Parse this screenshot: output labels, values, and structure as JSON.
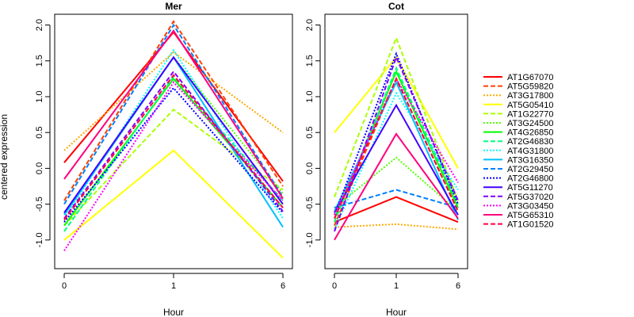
{
  "chart_data": {
    "type": "line",
    "ylabel": "centered expression",
    "xlabel": "Hour",
    "x": [
      "0",
      "1",
      "6"
    ],
    "yticks": [
      -1.0,
      -0.5,
      0.0,
      0.5,
      1.0,
      1.5,
      2.0
    ],
    "ytick_labels": [
      "-1.0",
      "-0.5",
      "0.0",
      "0.5",
      "1.0",
      "1.5",
      "2.0"
    ],
    "ylim": [
      -1.4,
      2.15
    ],
    "legend": {
      "placement": "right"
    },
    "legend_entries": [
      {
        "name": "AT1G67070",
        "color": "#ff0000",
        "dash": "solid"
      },
      {
        "name": "AT5G59820",
        "color": "#ff4000",
        "dash": "dashed"
      },
      {
        "name": "AT3G17800",
        "color": "#ffaa00",
        "dash": "dotted"
      },
      {
        "name": "AT5G05410",
        "color": "#ffff00",
        "dash": "solid"
      },
      {
        "name": "AT1G22770",
        "color": "#aaff00",
        "dash": "dashed"
      },
      {
        "name": "AT3G24500",
        "color": "#55ff00",
        "dash": "dotted"
      },
      {
        "name": "AT4G26850",
        "color": "#00ff00",
        "dash": "solid"
      },
      {
        "name": "AT2G46830",
        "color": "#00ff80",
        "dash": "dashed"
      },
      {
        "name": "AT4G31800",
        "color": "#00ffff",
        "dash": "dotted"
      },
      {
        "name": "AT3G16350",
        "color": "#00bfff",
        "dash": "solid"
      },
      {
        "name": "AT2G29450",
        "color": "#0080ff",
        "dash": "dashed"
      },
      {
        "name": "AT2G46800",
        "color": "#0000ff",
        "dash": "dotted"
      },
      {
        "name": "AT5G11270",
        "color": "#4000ff",
        "dash": "solid"
      },
      {
        "name": "AT5G37020",
        "color": "#8000ff",
        "dash": "dashed"
      },
      {
        "name": "AT3G03450",
        "color": "#ff00ff",
        "dash": "dotted"
      },
      {
        "name": "AT5G65310",
        "color": "#ff0080",
        "dash": "solid"
      },
      {
        "name": "AT1G01520",
        "color": "#ff0040",
        "dash": "dashed"
      }
    ],
    "panels": [
      {
        "title": "Mer",
        "series": [
          {
            "name": "AT1G67070",
            "values": [
              0.08,
              1.9,
              -0.18
            ]
          },
          {
            "name": "AT5G59820",
            "values": [
              -0.45,
              2.05,
              -0.25
            ]
          },
          {
            "name": "AT3G17800",
            "values": [
              0.25,
              1.62,
              0.5
            ]
          },
          {
            "name": "AT5G05410",
            "values": [
              -1.0,
              0.25,
              -1.25
            ]
          },
          {
            "name": "AT1G22770",
            "values": [
              -0.8,
              0.82,
              -0.3
            ]
          },
          {
            "name": "AT3G24500",
            "values": [
              -0.65,
              1.55,
              -0.35
            ]
          },
          {
            "name": "AT4G26850",
            "values": [
              -0.8,
              1.25,
              -0.55
            ]
          },
          {
            "name": "AT2G46830",
            "values": [
              -0.88,
              1.28,
              -0.45
            ]
          },
          {
            "name": "AT4G31800",
            "values": [
              -0.7,
              1.65,
              -0.7
            ]
          },
          {
            "name": "AT3G16350",
            "values": [
              -0.65,
              1.55,
              -0.82
            ]
          },
          {
            "name": "AT2G29450",
            "values": [
              -0.5,
              2.0,
              -0.4
            ]
          },
          {
            "name": "AT2G46800",
            "values": [
              -0.75,
              1.12,
              -0.62
            ]
          },
          {
            "name": "AT5G11270",
            "values": [
              -0.62,
              1.55,
              -0.5
            ]
          },
          {
            "name": "AT5G37020",
            "values": [
              -0.7,
              1.35,
              -0.6
            ]
          },
          {
            "name": "AT3G03450",
            "values": [
              -1.15,
              1.2,
              -0.45
            ]
          },
          {
            "name": "AT5G65310",
            "values": [
              -0.15,
              1.92,
              -0.42
            ]
          },
          {
            "name": "AT1G01520",
            "values": [
              -0.72,
              1.3,
              -0.55
            ]
          }
        ]
      },
      {
        "title": "Cot",
        "series": [
          {
            "name": "AT1G67070",
            "values": [
              -0.75,
              -0.4,
              -0.75
            ]
          },
          {
            "name": "AT5G59820",
            "values": [
              -0.8,
              1.25,
              -0.6
            ]
          },
          {
            "name": "AT3G17800",
            "values": [
              -0.82,
              -0.78,
              -0.85
            ]
          },
          {
            "name": "AT5G05410",
            "values": [
              0.5,
              1.55,
              0.0
            ]
          },
          {
            "name": "AT1G22770",
            "values": [
              -0.4,
              1.82,
              -0.45
            ]
          },
          {
            "name": "AT3G24500",
            "values": [
              -0.55,
              0.15,
              -0.6
            ]
          },
          {
            "name": "AT4G26850",
            "values": [
              -0.7,
              1.35,
              -0.55
            ]
          },
          {
            "name": "AT2G46830",
            "values": [
              -0.75,
              1.4,
              -0.5
            ]
          },
          {
            "name": "AT4G31800",
            "values": [
              -0.85,
              1.05,
              -0.3
            ]
          },
          {
            "name": "AT3G16350",
            "values": [
              -0.6,
              1.2,
              -0.72
            ]
          },
          {
            "name": "AT2G29450",
            "values": [
              -0.55,
              -0.3,
              -0.55
            ]
          },
          {
            "name": "AT2G46800",
            "values": [
              -0.65,
              1.6,
              -0.5
            ]
          },
          {
            "name": "AT5G11270",
            "values": [
              -0.62,
              0.88,
              -0.65
            ]
          },
          {
            "name": "AT5G37020",
            "values": [
              -0.88,
              1.55,
              -0.45
            ]
          },
          {
            "name": "AT3G03450",
            "values": [
              -0.65,
              1.25,
              -0.2
            ]
          },
          {
            "name": "AT5G65310",
            "values": [
              -1.0,
              0.48,
              -0.7
            ]
          },
          {
            "name": "AT1G01520",
            "values": [
              -0.7,
              1.25,
              -0.6
            ]
          }
        ]
      }
    ]
  }
}
